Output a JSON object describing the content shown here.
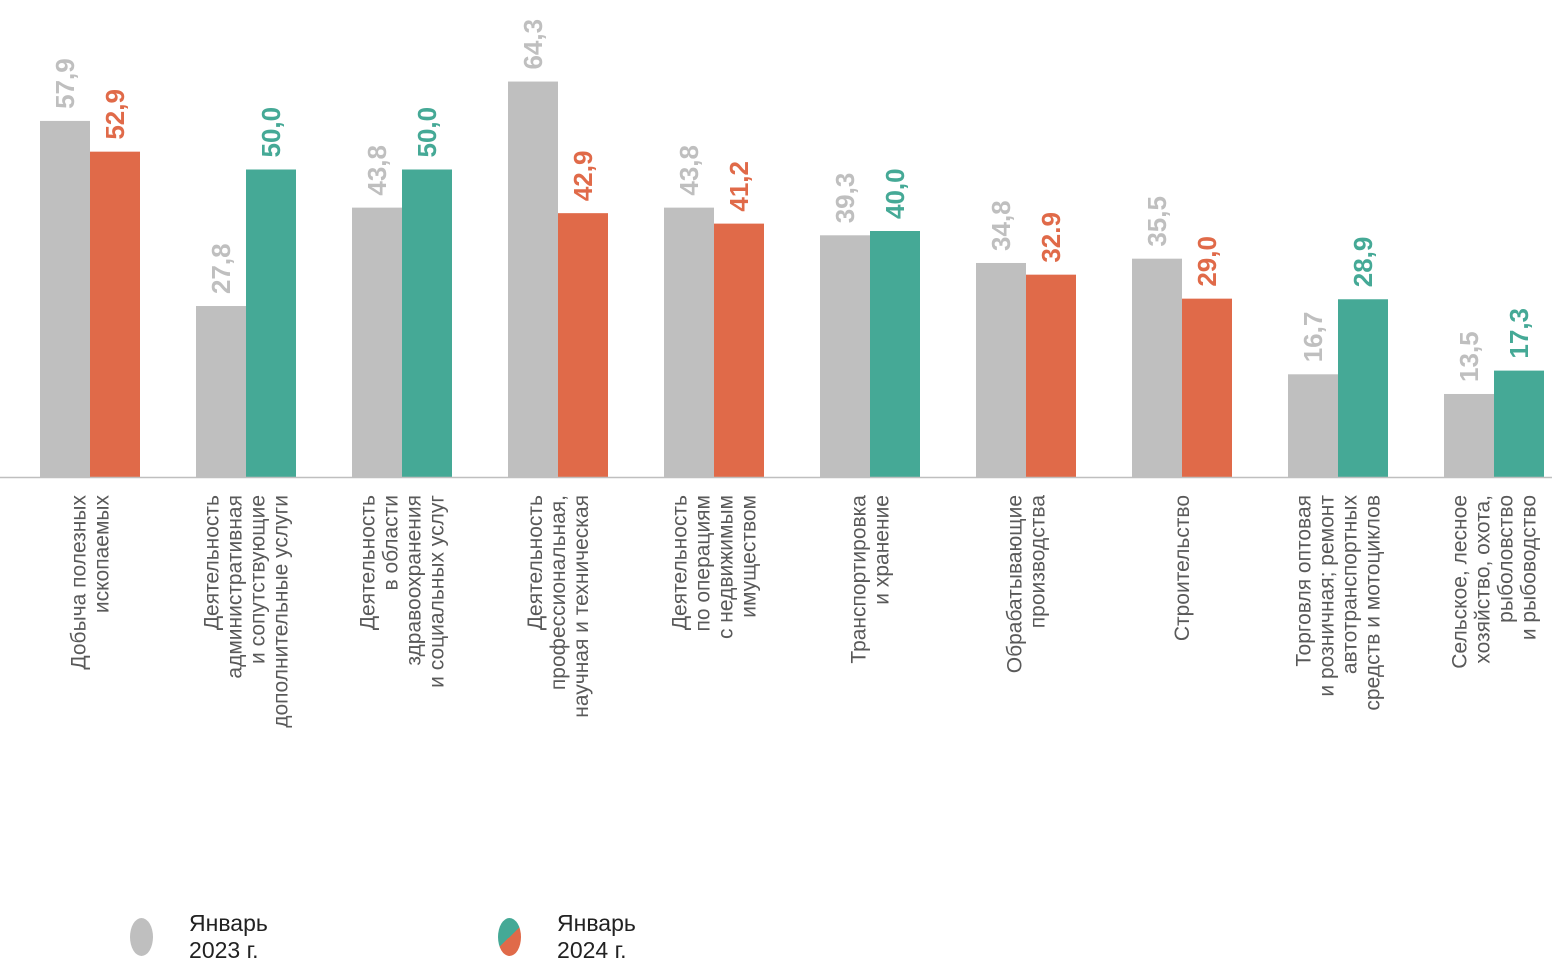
{
  "chart_data": {
    "type": "bar",
    "categories": [
      [
        "Добыча полезных",
        "ископаемых"
      ],
      [
        "Деятельность",
        "административная",
        "и сопутствующие",
        "дополнительные услуги"
      ],
      [
        "Деятельность",
        "в области",
        "здравоохранения",
        "и социальных услуг"
      ],
      [
        "Деятельность",
        "профессиональная,",
        "научная и техническая"
      ],
      [
        "Деятельность",
        "по операциям",
        "с недвижимым",
        "имуществом"
      ],
      [
        "Транспортировка",
        "и хранение"
      ],
      [
        "Обрабатывающие",
        "производства"
      ],
      [
        "Строительство"
      ],
      [
        "Торговля оптовая",
        "и розничная; ремонт",
        "автотранспортных",
        "средств и мотоциклов"
      ],
      [
        "Сельское, лесное",
        "хозяйство, охота,",
        "рыболовство",
        "и рыбоводство"
      ]
    ],
    "series": [
      {
        "name": "Январь 2023 г.",
        "values": [
          57.9,
          27.8,
          43.8,
          64.3,
          43.8,
          39.3,
          34.8,
          35.5,
          16.7,
          13.5
        ],
        "labels": [
          "57,9",
          "27,8",
          "43,8",
          "64,3",
          "43,8",
          "39,3",
          "34,8",
          "35,5",
          "16,7",
          "13,5"
        ],
        "color": "#bfbfbf"
      },
      {
        "name": "Январь 2024 г.",
        "values": [
          52.9,
          50.0,
          50.0,
          42.9,
          41.2,
          40.0,
          32.9,
          29.0,
          28.9,
          17.3
        ],
        "labels": [
          "52,9",
          "50,0",
          "50,0",
          "42,9",
          "41,2",
          "40,0",
          "32.9",
          "29,0",
          "28,9",
          "17,3"
        ],
        "colors": [
          "#e06a49",
          "#45a996",
          "#45a996",
          "#e06a49",
          "#e06a49",
          "#45a996",
          "#e06a49",
          "#e06a49",
          "#45a996",
          "#45a996"
        ]
      }
    ],
    "ylim": [
      0,
      70
    ],
    "grid": false,
    "legend_position": "bottom-left"
  },
  "legend": {
    "items": [
      {
        "label": "Январь 2023 г.",
        "colors": [
          "#bfbfbf"
        ]
      },
      {
        "label": "Январь 2024 г.",
        "colors": [
          "#45a996",
          "#e06a49"
        ]
      }
    ]
  },
  "colors": {
    "grey": "#bfbfbf",
    "orange": "#e06a49",
    "teal": "#45a996",
    "axis": "#bfbfbf",
    "label_text": "#595959"
  }
}
